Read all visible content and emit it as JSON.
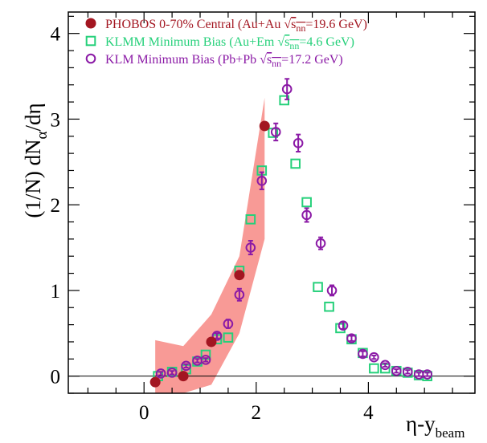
{
  "chart_data": {
    "type": "scatter",
    "title": "",
    "xlabel": "η-y",
    "xlabel_sub": "beam",
    "ylabel_parts": [
      "(1/N) dN",
      "α",
      "/dη"
    ],
    "xlim": [
      -1.35,
      5.9
    ],
    "ylim": [
      -0.2,
      4.25
    ],
    "xticks": [
      0,
      2,
      4
    ],
    "yticks": [
      0,
      1,
      2,
      3,
      4
    ],
    "xtick_labels": [
      "0",
      "2",
      "4"
    ],
    "ytick_labels": [
      "0",
      "1",
      "2",
      "3",
      "4"
    ],
    "grid": false,
    "zero_line": true,
    "legend_position": "top-left",
    "series": [
      {
        "name": "PHOBOS 0-70% Central (Au+Au √s_nn=19.6 GeV)",
        "legend_parts": [
          "PHOBOS 0-70% Central (Au+Au ",
          "√",
          "s",
          "nn",
          "=19.6 GeV)"
        ],
        "marker": "filled-circle",
        "color": "#a31621",
        "band_color": "#f89a96",
        "x": [
          0.2,
          0.7,
          1.2,
          1.7,
          2.15
        ],
        "y": [
          -0.07,
          0.0,
          0.4,
          1.18,
          2.92
        ],
        "band": {
          "x": [
            0.2,
            0.7,
            1.2,
            1.7,
            2.15
          ],
          "low": [
            -0.2,
            -0.2,
            -0.1,
            0.5,
            1.6
          ],
          "high": [
            0.42,
            0.35,
            0.72,
            1.4,
            3.25
          ]
        }
      },
      {
        "name": "KLMM Minimum Bias (Au+Em √s_nn=4.6 GeV)",
        "legend_parts": [
          "KLMM Minimum Bias (Au+Em ",
          "√",
          "s",
          "nn",
          "=4.6 GeV)"
        ],
        "marker": "open-square",
        "color": "#25d07a",
        "x": [
          0.25,
          0.5,
          0.75,
          0.95,
          1.1,
          1.3,
          1.5,
          1.7,
          1.9,
          2.1,
          2.3,
          2.5,
          2.7,
          2.9,
          3.1,
          3.3,
          3.5,
          3.7,
          3.9,
          4.1,
          4.3,
          4.5,
          4.7,
          4.9,
          5.05
        ],
        "y": [
          0.0,
          0.05,
          0.08,
          0.17,
          0.25,
          0.43,
          0.45,
          1.23,
          1.83,
          2.4,
          2.84,
          3.22,
          2.48,
          2.03,
          1.04,
          0.81,
          0.56,
          0.43,
          0.27,
          0.09,
          0.09,
          0.06,
          0.04,
          0.01,
          0.0
        ]
      },
      {
        "name": "KLM Minimum Bias (Pb+Pb √s_nn=17.2 GeV)",
        "legend_parts": [
          "KLM Minimum Bias (Pb+Pb ",
          "√",
          "s",
          "nn",
          "=17.2 GeV)"
        ],
        "marker": "open-circle",
        "color": "#8b1aa6",
        "x": [
          0.3,
          0.5,
          0.75,
          0.95,
          1.1,
          1.3,
          1.5,
          1.7,
          1.9,
          2.1,
          2.35,
          2.55,
          2.75,
          2.9,
          3.15,
          3.35,
          3.55,
          3.7,
          3.9,
          4.1,
          4.3,
          4.5,
          4.7,
          4.9,
          5.05
        ],
        "y": [
          0.03,
          0.04,
          0.12,
          0.18,
          0.19,
          0.47,
          0.61,
          0.95,
          1.5,
          2.28,
          2.85,
          3.35,
          2.72,
          1.88,
          1.55,
          1.0,
          0.59,
          0.44,
          0.26,
          0.22,
          0.13,
          0.06,
          0.05,
          0.02,
          0.02
        ],
        "yerr": [
          0.02,
          0.02,
          0.02,
          0.02,
          0.02,
          0.03,
          0.05,
          0.07,
          0.08,
          0.1,
          0.1,
          0.12,
          0.1,
          0.08,
          0.07,
          0.06,
          0.04,
          0.03,
          0.03,
          0.02,
          0.02,
          0.02,
          0.02,
          0.02,
          0.02
        ]
      }
    ]
  }
}
